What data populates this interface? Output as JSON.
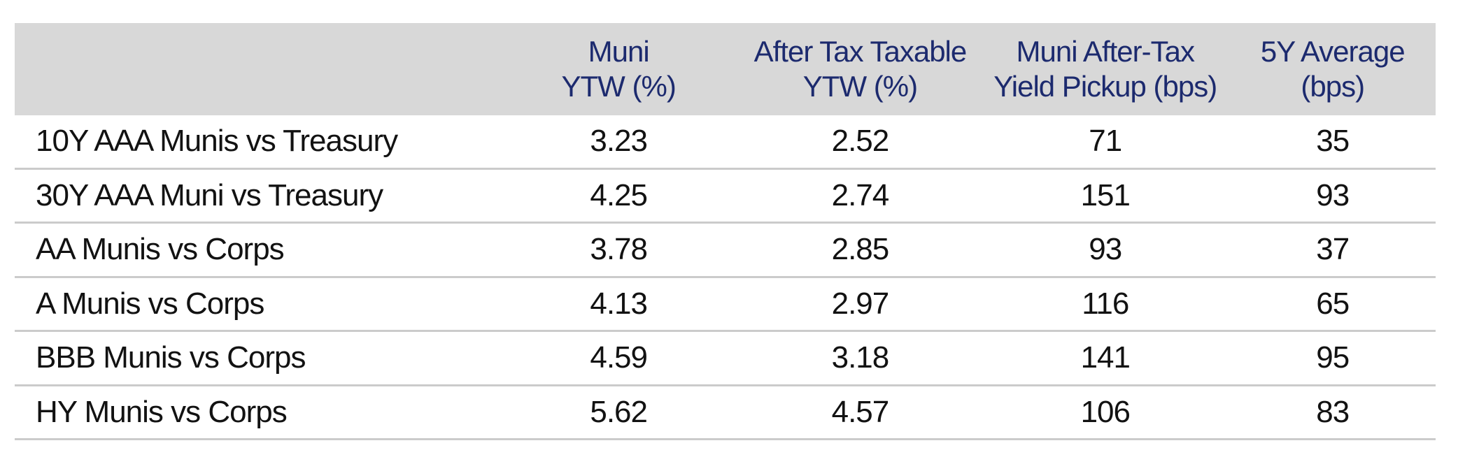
{
  "table": {
    "headers": [
      {
        "line1": "",
        "line2": ""
      },
      {
        "line1": "Muni",
        "line2": "YTW (%)"
      },
      {
        "line1": "After Tax Taxable",
        "line2": "YTW (%)"
      },
      {
        "line1": "Muni After-Tax",
        "line2": "Yield Pickup (bps)"
      },
      {
        "line1": "5Y Average",
        "line2": "(bps)"
      }
    ],
    "rows": [
      {
        "label": "10Y AAA Munis vs Treasury",
        "values": [
          "3.23",
          "2.52",
          "71",
          "35"
        ]
      },
      {
        "label": "30Y AAA Muni vs Treasury",
        "values": [
          "4.25",
          "2.74",
          "151",
          "93"
        ]
      },
      {
        "label": "AA Munis vs Corps",
        "values": [
          "3.78",
          "2.85",
          "93",
          "37"
        ]
      },
      {
        "label": "A Munis vs Corps",
        "values": [
          "4.13",
          "2.97",
          "116",
          "65"
        ]
      },
      {
        "label": "BBB Munis vs Corps",
        "values": [
          "4.59",
          "3.18",
          "141",
          "95"
        ]
      },
      {
        "label": "HY Munis vs Corps",
        "values": [
          "5.62",
          "4.57",
          "106",
          "83"
        ]
      }
    ]
  },
  "colors": {
    "header_background": "#d8d8d8",
    "header_text": "#1c2a6e",
    "body_text": "#121212",
    "divider": "#cbcbcb",
    "page_background": "#ffffff"
  },
  "chart_data": {
    "type": "table",
    "columns": [
      "",
      "Muni YTW (%)",
      "After Tax Taxable YTW (%)",
      "Muni After-Tax Yield Pickup (bps)",
      "5Y Average (bps)"
    ],
    "rows": [
      [
        "10Y AAA Munis vs Treasury",
        3.23,
        2.52,
        71,
        35
      ],
      [
        "30Y AAA Muni vs Treasury",
        4.25,
        2.74,
        151,
        93
      ],
      [
        "AA Munis vs Corps",
        3.78,
        2.85,
        93,
        37
      ],
      [
        "A Munis vs Corps",
        4.13,
        2.97,
        116,
        65
      ],
      [
        "BBB Munis vs Corps",
        4.59,
        3.18,
        141,
        95
      ],
      [
        "HY Munis vs Corps",
        5.62,
        4.57,
        106,
        83
      ]
    ]
  }
}
